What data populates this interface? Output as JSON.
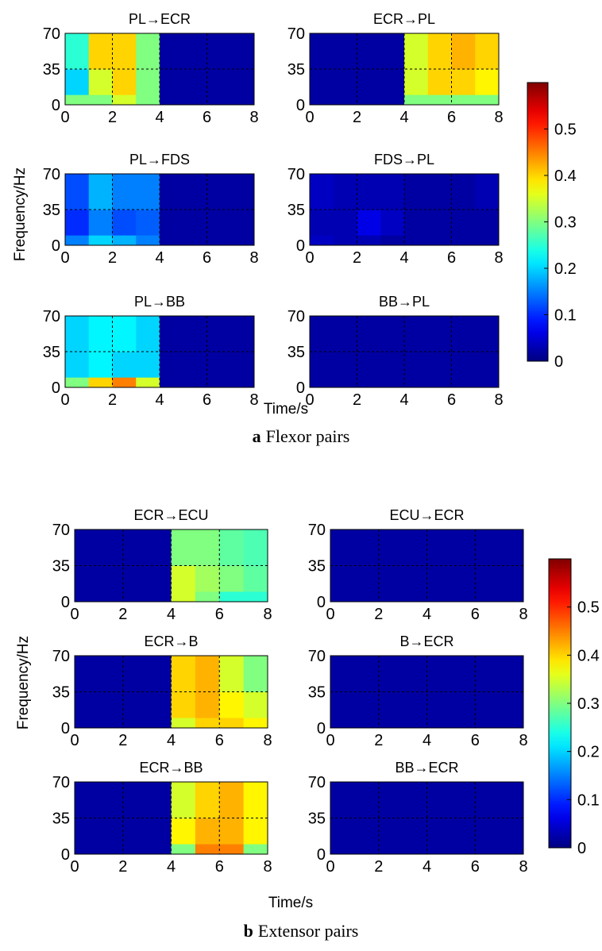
{
  "figures": [
    {
      "caption_label": "a",
      "caption": "Flexor pairs",
      "ylabel": "Frequency/Hz",
      "xlabel": "Time/s",
      "colorbar": {
        "colormap": "jet",
        "clim": [
          0,
          0.6
        ],
        "ticks": [
          0,
          0.1,
          0.2,
          0.3,
          0.4,
          0.5
        ]
      },
      "chart_data": [
        {
          "type": "heatmap",
          "title": "PL→ECR",
          "x_bins": [
            0,
            1,
            2,
            3,
            4,
            5,
            6,
            7,
            8
          ],
          "y_bins": [
            0,
            10,
            35,
            70
          ],
          "xlim": [
            0,
            8
          ],
          "ylim": [
            0,
            70
          ],
          "xticks": [
            0,
            2,
            4,
            6,
            8
          ],
          "yticks": [
            0,
            35,
            70
          ],
          "grid": true,
          "z": [
            [
              0.3,
              0.3,
              0.35,
              0.3,
              0.02,
              0.02,
              0.02,
              0.02
            ],
            [
              0.2,
              0.35,
              0.4,
              0.3,
              0.02,
              0.02,
              0.02,
              0.02
            ],
            [
              0.25,
              0.4,
              0.4,
              0.3,
              0.02,
              0.02,
              0.02,
              0.02
            ]
          ]
        },
        {
          "type": "heatmap",
          "title": "ECR→PL",
          "x_bins": [
            0,
            1,
            2,
            3,
            4,
            5,
            6,
            7,
            8
          ],
          "y_bins": [
            0,
            10,
            35,
            70
          ],
          "xlim": [
            0,
            8
          ],
          "ylim": [
            0,
            70
          ],
          "xticks": [
            0,
            2,
            4,
            6,
            8
          ],
          "yticks": [
            0,
            35,
            70
          ],
          "grid": true,
          "z": [
            [
              0.02,
              0.02,
              0.02,
              0.02,
              0.3,
              0.3,
              0.3,
              0.3
            ],
            [
              0.02,
              0.02,
              0.02,
              0.02,
              0.35,
              0.4,
              0.4,
              0.38
            ],
            [
              0.02,
              0.02,
              0.02,
              0.02,
              0.35,
              0.4,
              0.42,
              0.4
            ]
          ]
        },
        {
          "type": "heatmap",
          "title": "PL→FDS",
          "x_bins": [
            0,
            1,
            2,
            3,
            4,
            5,
            6,
            7,
            8
          ],
          "y_bins": [
            0,
            10,
            35,
            70
          ],
          "xlim": [
            0,
            8
          ],
          "ylim": [
            0,
            70
          ],
          "xticks": [
            0,
            2,
            4,
            6,
            8
          ],
          "yticks": [
            0,
            35,
            70
          ],
          "grid": true,
          "z": [
            [
              0.15,
              0.2,
              0.18,
              0.15,
              0.02,
              0.02,
              0.02,
              0.02
            ],
            [
              0.1,
              0.15,
              0.12,
              0.13,
              0.02,
              0.02,
              0.02,
              0.02
            ],
            [
              0.12,
              0.18,
              0.15,
              0.15,
              0.02,
              0.02,
              0.02,
              0.02
            ]
          ]
        },
        {
          "type": "heatmap",
          "title": "FDS→PL",
          "x_bins": [
            0,
            1,
            2,
            3,
            4,
            5,
            6,
            7,
            8
          ],
          "y_bins": [
            0,
            10,
            35,
            70
          ],
          "xlim": [
            0,
            8
          ],
          "ylim": [
            0,
            70
          ],
          "xticks": [
            0,
            2,
            4,
            6,
            8
          ],
          "yticks": [
            0,
            35,
            70
          ],
          "grid": true,
          "z": [
            [
              0.04,
              0.03,
              0.03,
              0.02,
              0.02,
              0.02,
              0.02,
              0.02
            ],
            [
              0.03,
              0.03,
              0.06,
              0.04,
              0.02,
              0.02,
              0.02,
              0.02
            ],
            [
              0.04,
              0.03,
              0.03,
              0.03,
              0.02,
              0.02,
              0.02,
              0.03
            ]
          ]
        },
        {
          "type": "heatmap",
          "title": "PL→BB",
          "x_bins": [
            0,
            1,
            2,
            3,
            4,
            5,
            6,
            7,
            8
          ],
          "y_bins": [
            0,
            10,
            35,
            70
          ],
          "xlim": [
            0,
            8
          ],
          "ylim": [
            0,
            70
          ],
          "xticks": [
            0,
            2,
            4,
            6,
            8
          ],
          "yticks": [
            0,
            35,
            70
          ],
          "grid": true,
          "z": [
            [
              0.3,
              0.4,
              0.45,
              0.35,
              0.02,
              0.02,
              0.02,
              0.02
            ],
            [
              0.2,
              0.22,
              0.2,
              0.2,
              0.02,
              0.02,
              0.02,
              0.02
            ],
            [
              0.2,
              0.22,
              0.22,
              0.2,
              0.02,
              0.02,
              0.02,
              0.02
            ]
          ]
        },
        {
          "type": "heatmap",
          "title": "BB→PL",
          "x_bins": [
            0,
            1,
            2,
            3,
            4,
            5,
            6,
            7,
            8
          ],
          "y_bins": [
            0,
            10,
            35,
            70
          ],
          "xlim": [
            0,
            8
          ],
          "ylim": [
            0,
            70
          ],
          "xticks": [
            0,
            2,
            4,
            6,
            8
          ],
          "yticks": [
            0,
            35,
            70
          ],
          "grid": true,
          "z": [
            [
              0.02,
              0.02,
              0.02,
              0.02,
              0.02,
              0.02,
              0.02,
              0.02
            ],
            [
              0.02,
              0.02,
              0.02,
              0.02,
              0.02,
              0.02,
              0.02,
              0.02
            ],
            [
              0.02,
              0.02,
              0.02,
              0.02,
              0.02,
              0.02,
              0.02,
              0.02
            ]
          ]
        }
      ]
    },
    {
      "caption_label": "b",
      "caption": "Extensor pairs",
      "ylabel": "Frequency/Hz",
      "xlabel": "Time/s",
      "colorbar": {
        "colormap": "jet",
        "clim": [
          0,
          0.6
        ],
        "ticks": [
          0,
          0.1,
          0.2,
          0.3,
          0.4,
          0.5
        ]
      },
      "chart_data": [
        {
          "type": "heatmap",
          "title": "ECR→ECU",
          "x_bins": [
            0,
            1,
            2,
            3,
            4,
            5,
            6,
            7,
            8
          ],
          "y_bins": [
            0,
            10,
            35,
            70
          ],
          "xlim": [
            0,
            8
          ],
          "ylim": [
            0,
            70
          ],
          "xticks": [
            0,
            2,
            4,
            6,
            8
          ],
          "yticks": [
            0,
            35,
            70
          ],
          "grid": true,
          "z": [
            [
              0.02,
              0.02,
              0.02,
              0.02,
              0.35,
              0.3,
              0.25,
              0.25
            ],
            [
              0.02,
              0.02,
              0.02,
              0.02,
              0.35,
              0.32,
              0.3,
              0.28
            ],
            [
              0.02,
              0.02,
              0.02,
              0.02,
              0.3,
              0.3,
              0.28,
              0.27
            ]
          ]
        },
        {
          "type": "heatmap",
          "title": "ECU→ECR",
          "x_bins": [
            0,
            1,
            2,
            3,
            4,
            5,
            6,
            7,
            8
          ],
          "y_bins": [
            0,
            10,
            35,
            70
          ],
          "xlim": [
            0,
            8
          ],
          "ylim": [
            0,
            70
          ],
          "xticks": [
            0,
            2,
            4,
            6,
            8
          ],
          "yticks": [
            0,
            35,
            70
          ],
          "grid": true,
          "z": [
            [
              0.02,
              0.02,
              0.02,
              0.02,
              0.02,
              0.02,
              0.02,
              0.02
            ],
            [
              0.02,
              0.02,
              0.02,
              0.02,
              0.02,
              0.02,
              0.02,
              0.02
            ],
            [
              0.02,
              0.02,
              0.02,
              0.02,
              0.02,
              0.02,
              0.02,
              0.02
            ]
          ]
        },
        {
          "type": "heatmap",
          "title": "ECR→B",
          "x_bins": [
            0,
            1,
            2,
            3,
            4,
            5,
            6,
            7,
            8
          ],
          "y_bins": [
            0,
            10,
            35,
            70
          ],
          "xlim": [
            0,
            8
          ],
          "ylim": [
            0,
            70
          ],
          "xticks": [
            0,
            2,
            4,
            6,
            8
          ],
          "yticks": [
            0,
            35,
            70
          ],
          "grid": true,
          "z": [
            [
              0.02,
              0.02,
              0.02,
              0.02,
              0.35,
              0.4,
              0.4,
              0.38
            ],
            [
              0.02,
              0.02,
              0.02,
              0.02,
              0.4,
              0.42,
              0.38,
              0.35
            ],
            [
              0.02,
              0.02,
              0.02,
              0.02,
              0.4,
              0.42,
              0.35,
              0.3
            ]
          ]
        },
        {
          "type": "heatmap",
          "title": "B→ECR",
          "x_bins": [
            0,
            1,
            2,
            3,
            4,
            5,
            6,
            7,
            8
          ],
          "y_bins": [
            0,
            10,
            35,
            70
          ],
          "xlim": [
            0,
            8
          ],
          "ylim": [
            0,
            70
          ],
          "xticks": [
            0,
            2,
            4,
            6,
            8
          ],
          "yticks": [
            0,
            35,
            70
          ],
          "grid": true,
          "z": [
            [
              0.02,
              0.02,
              0.02,
              0.02,
              0.02,
              0.02,
              0.02,
              0.02
            ],
            [
              0.02,
              0.02,
              0.02,
              0.02,
              0.02,
              0.02,
              0.02,
              0.02
            ],
            [
              0.02,
              0.02,
              0.02,
              0.02,
              0.02,
              0.02,
              0.02,
              0.02
            ]
          ]
        },
        {
          "type": "heatmap",
          "title": "ECR→BB",
          "x_bins": [
            0,
            1,
            2,
            3,
            4,
            5,
            6,
            7,
            8
          ],
          "y_bins": [
            0,
            10,
            35,
            70
          ],
          "xlim": [
            0,
            8
          ],
          "ylim": [
            0,
            70
          ],
          "xticks": [
            0,
            2,
            4,
            6,
            8
          ],
          "yticks": [
            0,
            35,
            70
          ],
          "grid": true,
          "z": [
            [
              0.02,
              0.02,
              0.02,
              0.02,
              0.3,
              0.45,
              0.45,
              0.3
            ],
            [
              0.02,
              0.02,
              0.02,
              0.02,
              0.38,
              0.42,
              0.42,
              0.38
            ],
            [
              0.02,
              0.02,
              0.02,
              0.02,
              0.35,
              0.4,
              0.42,
              0.38
            ]
          ]
        },
        {
          "type": "heatmap",
          "title": "BB→ECR",
          "x_bins": [
            0,
            1,
            2,
            3,
            4,
            5,
            6,
            7,
            8
          ],
          "y_bins": [
            0,
            10,
            35,
            70
          ],
          "xlim": [
            0,
            8
          ],
          "ylim": [
            0,
            70
          ],
          "xticks": [
            0,
            2,
            4,
            6,
            8
          ],
          "yticks": [
            0,
            35,
            70
          ],
          "grid": true,
          "z": [
            [
              0.02,
              0.02,
              0.02,
              0.02,
              0.02,
              0.02,
              0.02,
              0.02
            ],
            [
              0.02,
              0.02,
              0.02,
              0.02,
              0.02,
              0.02,
              0.02,
              0.02
            ],
            [
              0.02,
              0.02,
              0.02,
              0.02,
              0.02,
              0.02,
              0.02,
              0.02
            ]
          ]
        }
      ]
    }
  ]
}
